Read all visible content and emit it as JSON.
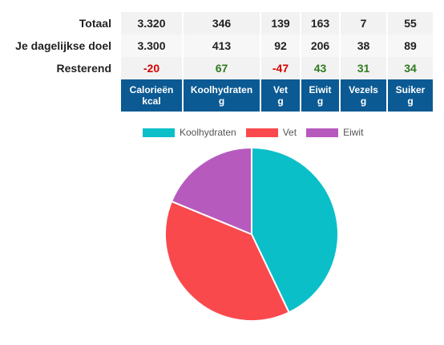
{
  "table": {
    "rows": [
      {
        "label": "Totaal",
        "values": [
          "3.320",
          "346",
          "139",
          "163",
          "7",
          "55"
        ]
      },
      {
        "label": "Je dagelijkse doel",
        "values": [
          "3.300",
          "413",
          "92",
          "206",
          "38",
          "89"
        ]
      },
      {
        "label": "Resterend",
        "values": [
          "-20",
          "67",
          "-47",
          "43",
          "31",
          "34"
        ]
      }
    ],
    "headers": [
      {
        "name": "Calorieën",
        "unit": "kcal"
      },
      {
        "name": "Koolhydraten",
        "unit": "g"
      },
      {
        "name": "Vet",
        "unit": "g"
      },
      {
        "name": "Eiwit",
        "unit": "g"
      },
      {
        "name": "Vezels",
        "unit": "g"
      },
      {
        "name": "Suiker",
        "unit": "g"
      }
    ]
  },
  "colors": {
    "header_bg": "#0b5a93",
    "negative": "#d40000",
    "positive": "#2f7a1f"
  },
  "chart_data": {
    "type": "pie",
    "categories": [
      "Koolhydraten",
      "Vet",
      "Eiwit"
    ],
    "values": [
      346,
      139,
      163
    ],
    "colors": [
      "#0bbfc9",
      "#f9494d",
      "#b65bbd"
    ],
    "legend": "top",
    "slice_percent": [
      42.9,
      38.3,
      18.8
    ]
  }
}
